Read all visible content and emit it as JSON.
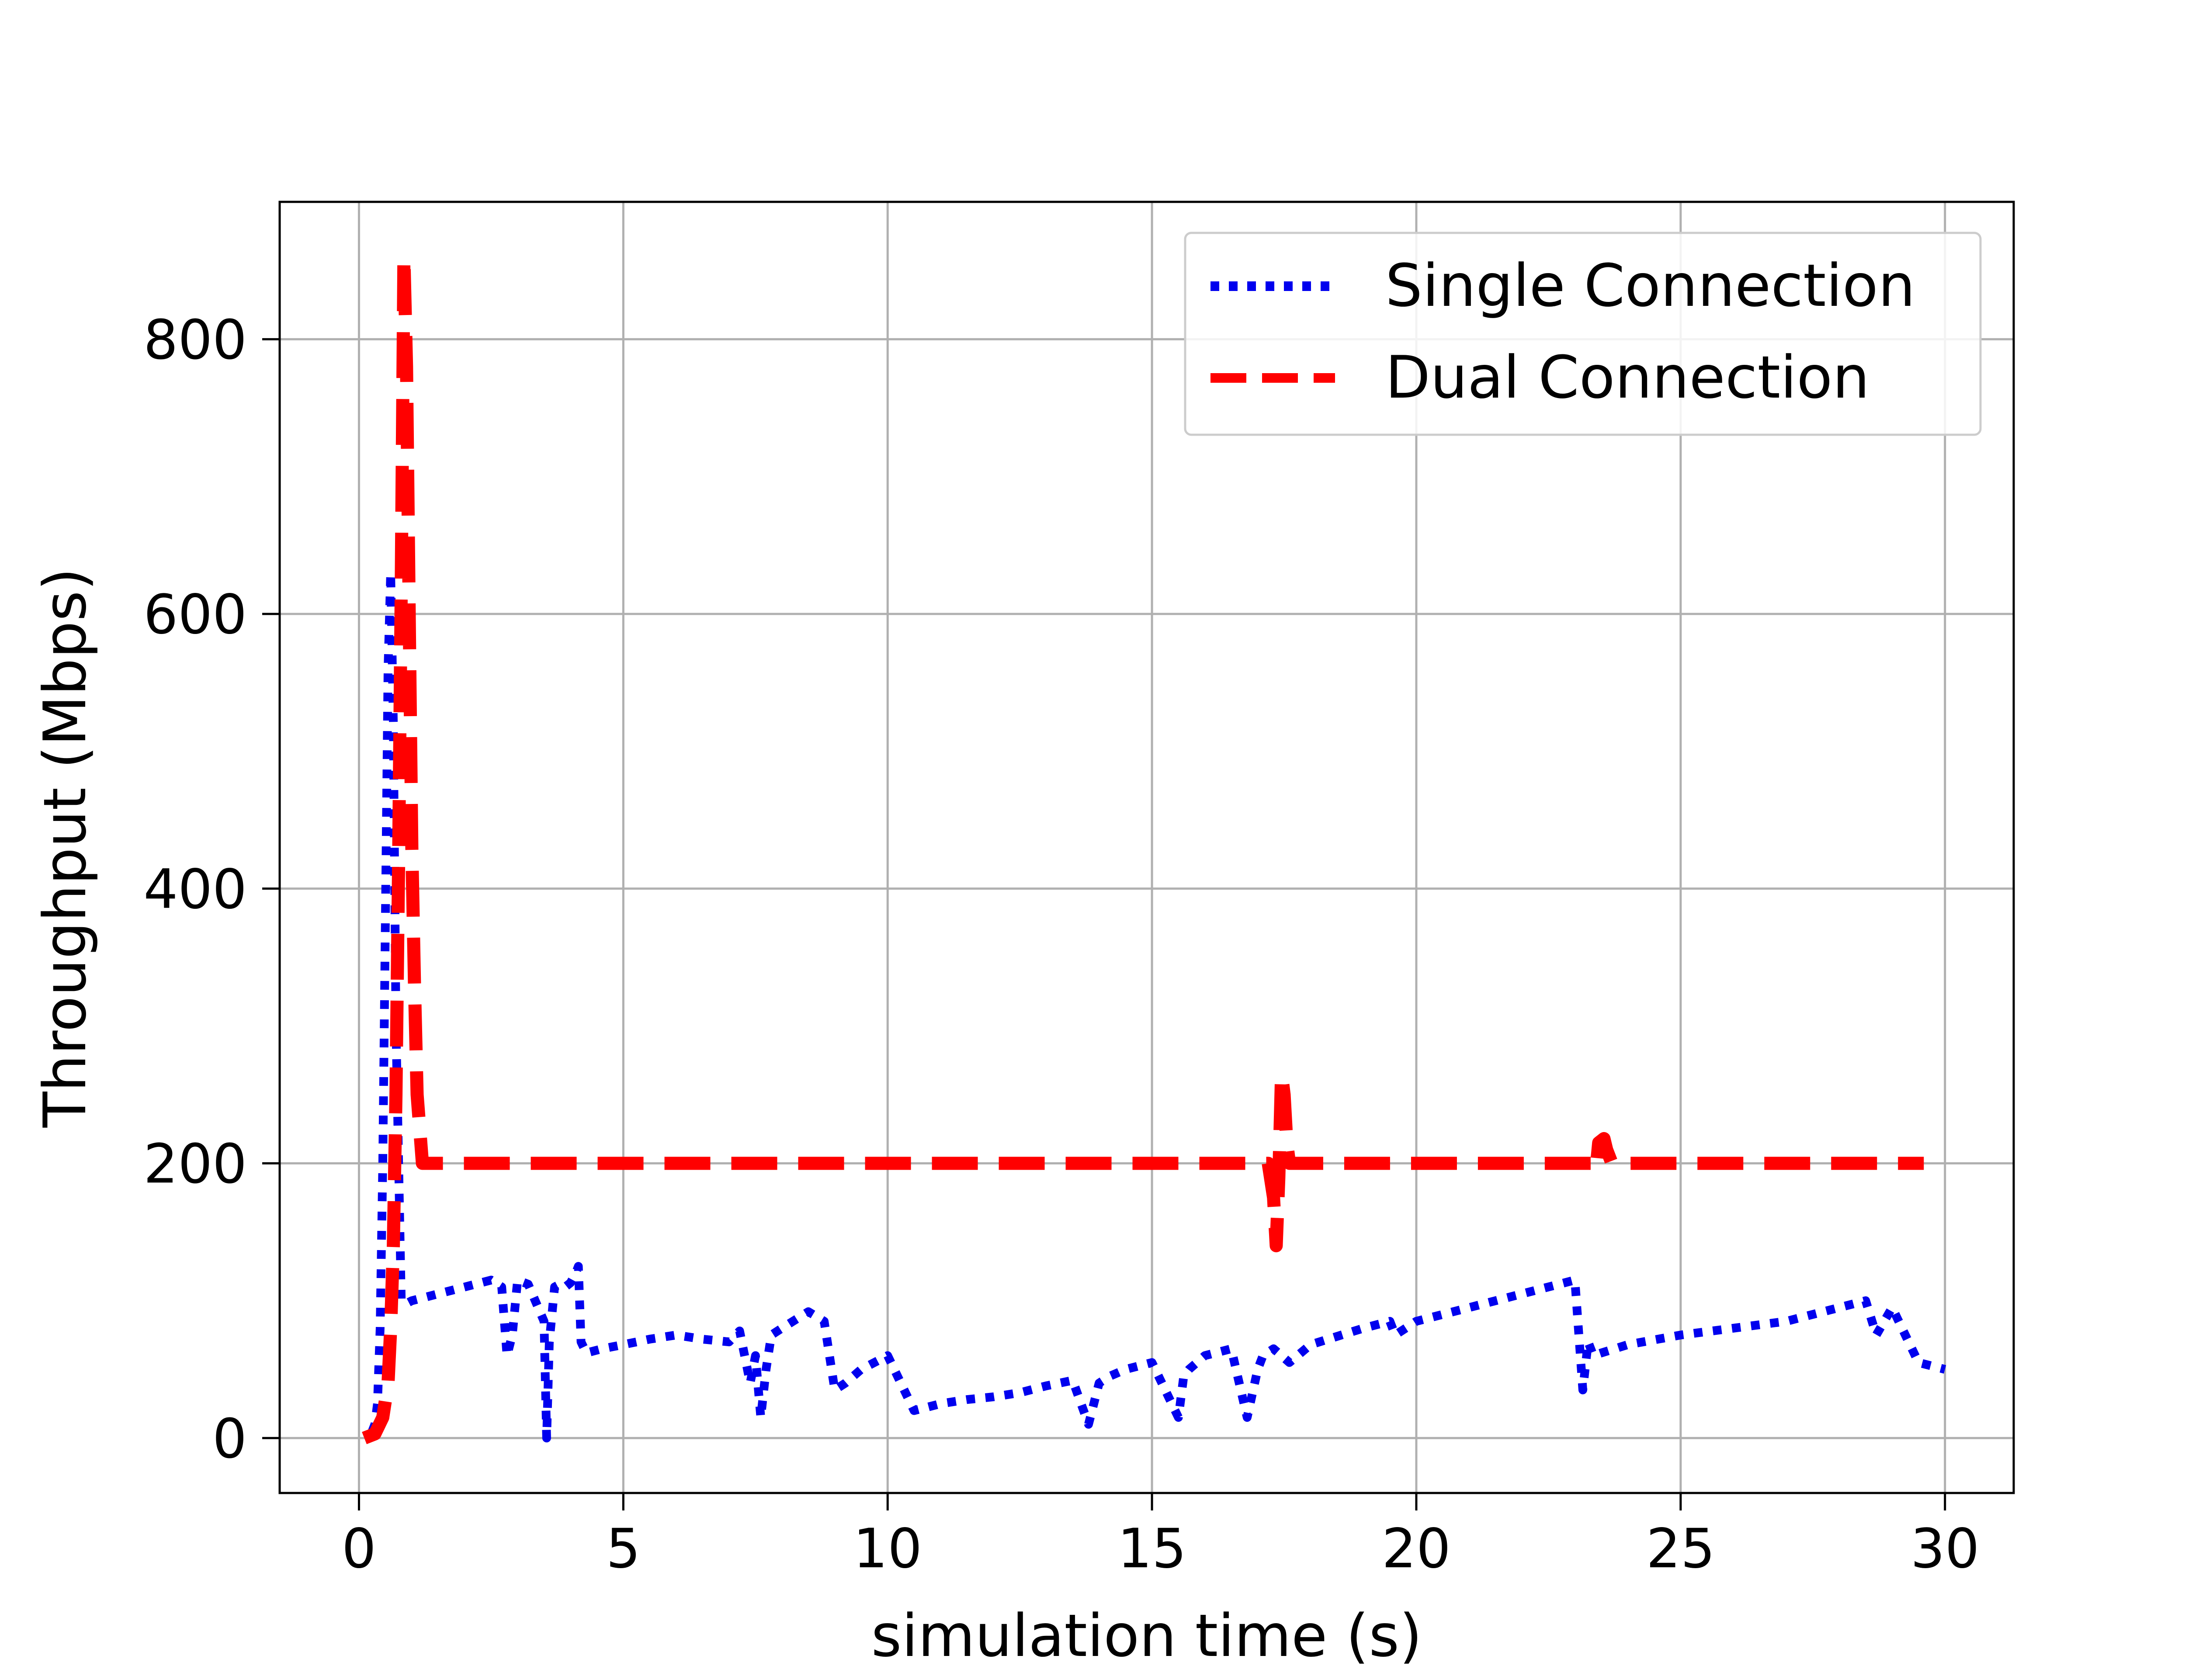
{
  "chart_data": {
    "type": "line",
    "title": "",
    "xlabel": "simulation time (s)",
    "ylabel": "Throughput (Mbps)",
    "xlim": [
      -1.5,
      31.3
    ],
    "ylim": [
      -40,
      900
    ],
    "x_ticks": [
      0,
      5,
      10,
      15,
      20,
      25,
      30
    ],
    "y_ticks": [
      0,
      200,
      400,
      600,
      800
    ],
    "grid": true,
    "legend_position": "top-right",
    "colors": {
      "single": "#0000ee",
      "dual": "#ff0000",
      "grid": "#b0b0b0",
      "frame": "#000000"
    },
    "series": [
      {
        "name": "Single Connection",
        "style": "dotted",
        "color": "#0000ee",
        "x": [
          0.25,
          0.3,
          0.35,
          0.4,
          0.45,
          0.5,
          0.55,
          0.6,
          0.65,
          0.7,
          0.8,
          0.9,
          1.0,
          1.5,
          2.0,
          2.5,
          2.7,
          2.8,
          2.9,
          3.0,
          3.2,
          3.5,
          3.55,
          3.6,
          3.7,
          3.8,
          3.9,
          4.0,
          4.1,
          4.15,
          4.2,
          4.3,
          4.6,
          5.0,
          5.5,
          6.0,
          6.5,
          7.0,
          7.2,
          7.4,
          7.5,
          7.6,
          7.7,
          7.8,
          8.0,
          8.5,
          8.8,
          9.0,
          9.2,
          9.5,
          10.0,
          10.5,
          11.0,
          11.5,
          12.0,
          12.5,
          13.0,
          13.5,
          13.8,
          14.0,
          14.2,
          14.5,
          15.0,
          15.5,
          15.6,
          15.7,
          16.0,
          16.5,
          16.8,
          17.0,
          17.1,
          17.3,
          17.6,
          18.0,
          19.0,
          19.5,
          19.6,
          20.0,
          21.0,
          22.0,
          23.0,
          23.15,
          23.25,
          23.35,
          23.5,
          24.0,
          25.0,
          26.0,
          27.0,
          28.0,
          28.5,
          28.7,
          29.0,
          29.5,
          30.0
        ],
        "y": [
          5,
          10,
          25,
          80,
          200,
          380,
          560,
          630,
          520,
          300,
          100,
          98,
          100,
          105,
          110,
          115,
          110,
          60,
          75,
          115,
          112,
          85,
          0,
          70,
          110,
          112,
          110,
          113,
          120,
          125,
          70,
          62,
          65,
          68,
          72,
          75,
          72,
          70,
          78,
          40,
          60,
          15,
          50,
          75,
          80,
          92,
          85,
          35,
          40,
          50,
          60,
          20,
          25,
          28,
          30,
          33,
          38,
          42,
          10,
          40,
          45,
          50,
          55,
          15,
          45,
          50,
          60,
          65,
          15,
          50,
          60,
          65,
          55,
          68,
          80,
          85,
          75,
          85,
          95,
          105,
          115,
          35,
          70,
          60,
          62,
          68,
          75,
          80,
          85,
          95,
          100,
          75,
          95,
          55,
          50
        ]
      },
      {
        "name": "Dual Connection",
        "style": "dashed",
        "color": "#ff0000",
        "x": [
          0.1,
          0.3,
          0.45,
          0.55,
          0.6,
          0.65,
          0.7,
          0.75,
          0.8,
          0.85,
          0.9,
          0.95,
          1.0,
          1.05,
          1.1,
          1.2,
          1.5,
          3.0,
          5.0,
          10.0,
          15.0,
          17.2,
          17.3,
          17.35,
          17.4,
          17.45,
          17.5,
          17.55,
          17.6,
          17.7,
          18.0,
          20.0,
          23.3,
          23.4,
          23.45,
          23.55,
          23.6,
          23.7,
          25.0,
          29.6
        ],
        "y": [
          0,
          3,
          15,
          40,
          80,
          140,
          250,
          420,
          620,
          860,
          780,
          600,
          430,
          330,
          250,
          200,
          200,
          200,
          200,
          200,
          200,
          200,
          175,
          140,
          190,
          265,
          250,
          215,
          200,
          200,
          200,
          200,
          200,
          195,
          215,
          218,
          210,
          200,
          200,
          200
        ]
      }
    ]
  }
}
